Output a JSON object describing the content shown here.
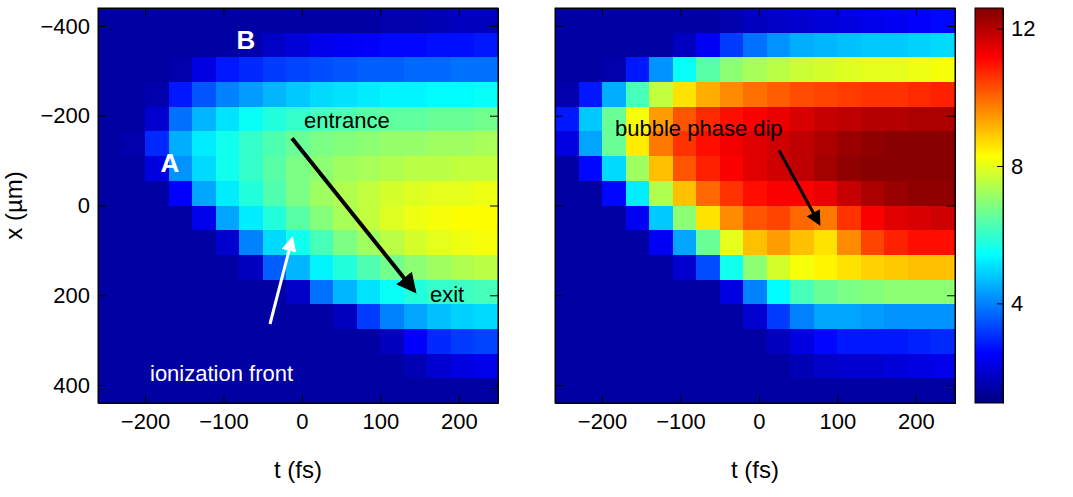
{
  "chart_data": [
    {
      "type": "heatmap",
      "x_label": "t (fs)",
      "y_label": "x (µm)",
      "xlim": [
        -260,
        250
      ],
      "ylim": [
        -440,
        440
      ],
      "xticks": [
        {
          "value": -200,
          "label": "−200"
        },
        {
          "value": -100,
          "label": "−100"
        },
        0,
        100,
        200
      ],
      "yticks": [
        {
          "value": -400,
          "label": "−400"
        },
        {
          "value": -200,
          "label": "−200"
        },
        0,
        200,
        400
      ],
      "zlim": [
        1.1,
        12.6
      ],
      "zticks": [
        4,
        8,
        12
      ],
      "annotations": [
        "B",
        "A",
        "entrance",
        "exit",
        "ionization front"
      ],
      "x_edges": [
        -260,
        -230,
        -200,
        -170,
        -140,
        -110,
        -80,
        -50,
        -20,
        10,
        40,
        70,
        100,
        130,
        160,
        190,
        220,
        250
      ],
      "y_edges": [
        -440,
        -385,
        -330,
        -275,
        -220,
        -165,
        -110,
        -55,
        0,
        55,
        110,
        165,
        220,
        275,
        330,
        385,
        440
      ],
      "cells": [
        [
          1.5,
          1.5,
          1.5,
          1.5,
          1.5,
          1.5,
          1.5,
          1.5,
          1.5,
          1.5,
          1.5,
          1.5,
          1.6,
          1.6,
          1.7,
          1.8,
          1.8
        ],
        [
          1.5,
          1.5,
          1.5,
          1.5,
          1.5,
          1.5,
          1.6,
          1.9,
          2.1,
          2.3,
          2.4,
          2.5,
          2.6,
          2.6,
          2.7,
          2.7,
          2.8
        ],
        [
          1.5,
          1.5,
          1.5,
          1.6,
          2.2,
          2.8,
          3.0,
          3.2,
          3.3,
          3.4,
          3.5,
          3.6,
          3.6,
          3.7,
          3.7,
          3.8,
          3.8
        ],
        [
          1.5,
          1.5,
          1.6,
          2.8,
          3.5,
          4.0,
          4.3,
          4.6,
          4.8,
          5.0,
          5.1,
          5.2,
          5.3,
          5.3,
          5.4,
          5.4,
          5.5
        ],
        [
          1.5,
          1.5,
          2.0,
          3.8,
          4.6,
          5.1,
          5.5,
          5.8,
          6.0,
          6.2,
          6.3,
          6.4,
          6.5,
          6.5,
          6.6,
          6.6,
          6.7
        ],
        [
          1.5,
          1.6,
          3.0,
          4.5,
          5.2,
          5.6,
          6.0,
          6.3,
          6.6,
          6.8,
          6.9,
          7.0,
          7.1,
          7.1,
          7.2,
          7.2,
          7.3
        ],
        [
          1.5,
          1.5,
          2.2,
          4.2,
          5.0,
          5.6,
          6.0,
          6.4,
          6.8,
          7.0,
          7.2,
          7.3,
          7.4,
          7.5,
          7.5,
          7.6,
          7.6
        ],
        [
          1.5,
          1.5,
          1.5,
          2.5,
          4.4,
          5.2,
          5.8,
          6.3,
          6.8,
          7.2,
          7.4,
          7.6,
          7.8,
          7.9,
          8.0,
          8.0,
          8.1
        ],
        [
          1.5,
          1.5,
          1.5,
          1.5,
          2.3,
          4.4,
          5.2,
          5.8,
          6.4,
          6.9,
          7.3,
          7.6,
          7.9,
          8.1,
          8.2,
          8.3,
          8.3
        ],
        [
          1.5,
          1.5,
          1.5,
          1.5,
          1.5,
          2.0,
          4.0,
          5.0,
          5.6,
          6.2,
          6.8,
          7.2,
          7.5,
          7.8,
          8.0,
          8.1,
          8.2
        ],
        [
          1.5,
          1.5,
          1.5,
          1.5,
          1.5,
          1.5,
          1.8,
          3.6,
          4.6,
          5.3,
          5.8,
          6.3,
          6.7,
          7.0,
          7.2,
          7.4,
          7.5
        ],
        [
          1.5,
          1.5,
          1.5,
          1.5,
          1.5,
          1.5,
          1.5,
          1.5,
          1.9,
          3.8,
          4.6,
          5.1,
          5.5,
          5.8,
          6.0,
          6.1,
          6.2
        ],
        [
          1.5,
          1.5,
          1.5,
          1.5,
          1.5,
          1.5,
          1.5,
          1.5,
          1.5,
          1.5,
          1.8,
          3.2,
          4.0,
          4.4,
          4.7,
          4.9,
          5.0
        ],
        [
          1.5,
          1.5,
          1.5,
          1.5,
          1.5,
          1.5,
          1.5,
          1.5,
          1.5,
          1.5,
          1.5,
          1.5,
          1.8,
          2.5,
          3.0,
          3.2,
          3.3
        ],
        [
          1.5,
          1.5,
          1.5,
          1.5,
          1.5,
          1.5,
          1.5,
          1.5,
          1.5,
          1.5,
          1.5,
          1.5,
          1.5,
          1.7,
          2.0,
          2.2,
          2.3
        ],
        [
          1.5,
          1.5,
          1.5,
          1.5,
          1.5,
          1.5,
          1.5,
          1.5,
          1.5,
          1.5,
          1.5,
          1.5,
          1.5,
          1.5,
          1.5,
          1.5,
          1.5
        ]
      ]
    },
    {
      "type": "heatmap",
      "x_label": "t (fs)",
      "tick_labels": "x",
      "xlim": [
        -260,
        250
      ],
      "ylim": [
        -440,
        440
      ],
      "xticks": [
        {
          "value": -200,
          "label": "−200"
        },
        {
          "value": -100,
          "label": "−100"
        },
        0,
        100,
        200
      ],
      "yticks": [
        -400,
        -200,
        0,
        200,
        400
      ],
      "zlim": [
        1.1,
        12.6
      ],
      "zticks": [
        4,
        8,
        12
      ],
      "annotations": [
        "bubble phase dip"
      ],
      "x_edges": [
        -260,
        -230,
        -200,
        -170,
        -140,
        -110,
        -80,
        -50,
        -20,
        10,
        40,
        70,
        100,
        130,
        160,
        190,
        220,
        250
      ],
      "y_edges": [
        -440,
        -385,
        -330,
        -275,
        -220,
        -165,
        -110,
        -55,
        0,
        55,
        110,
        165,
        220,
        275,
        330,
        385,
        440
      ],
      "cells": [
        [
          1.5,
          1.5,
          1.5,
          1.5,
          1.5,
          1.5,
          1.5,
          1.6,
          1.8,
          1.9,
          2.0,
          2.1,
          2.2,
          2.3,
          2.4,
          2.5,
          2.6
        ],
        [
          1.5,
          1.5,
          1.5,
          1.5,
          1.5,
          1.8,
          2.4,
          3.2,
          3.8,
          4.2,
          4.5,
          4.6,
          4.7,
          4.8,
          4.8,
          4.9,
          5.0
        ],
        [
          1.5,
          1.5,
          1.6,
          2.8,
          4.2,
          5.5,
          6.4,
          7.0,
          7.3,
          7.5,
          7.7,
          7.8,
          7.9,
          8.0,
          8.0,
          8.1,
          8.2
        ],
        [
          1.6,
          2.8,
          4.5,
          6.2,
          7.6,
          8.6,
          9.2,
          9.6,
          9.9,
          10.1,
          10.3,
          10.4,
          10.5,
          10.6,
          10.6,
          10.7,
          10.8
        ],
        [
          2.8,
          4.8,
          6.6,
          8.2,
          9.4,
          10.2,
          10.7,
          11.0,
          11.2,
          11.4,
          11.6,
          11.8,
          11.9,
          12.0,
          12.0,
          12.1,
          12.1
        ],
        [
          2.2,
          4.4,
          6.6,
          8.5,
          9.8,
          10.6,
          11.0,
          11.3,
          11.5,
          11.7,
          11.9,
          12.1,
          12.3,
          12.4,
          12.5,
          12.5,
          12.5
        ],
        [
          1.5,
          2.6,
          5.0,
          7.2,
          9.0,
          10.2,
          10.8,
          11.2,
          11.5,
          11.7,
          11.9,
          12.2,
          12.4,
          12.5,
          12.5,
          12.5,
          12.5
        ],
        [
          1.5,
          1.5,
          2.6,
          5.2,
          7.4,
          9.0,
          10.0,
          10.6,
          11.0,
          11.2,
          11.2,
          11.4,
          11.8,
          12.1,
          12.3,
          12.4,
          12.4
        ],
        [
          1.5,
          1.5,
          1.5,
          2.4,
          4.8,
          7.0,
          8.6,
          9.6,
          10.2,
          10.4,
          10.0,
          9.8,
          10.6,
          11.2,
          11.5,
          11.6,
          11.7
        ],
        [
          1.5,
          1.5,
          1.5,
          1.5,
          2.4,
          4.4,
          6.6,
          8.0,
          9.0,
          9.4,
          9.0,
          8.6,
          9.6,
          10.4,
          10.8,
          11.0,
          11.0
        ],
        [
          1.5,
          1.5,
          1.5,
          1.5,
          1.5,
          2.0,
          3.4,
          5.6,
          7.0,
          7.8,
          8.2,
          8.4,
          8.6,
          8.8,
          8.9,
          9.0,
          9.0
        ],
        [
          1.5,
          1.5,
          1.5,
          1.5,
          1.5,
          1.5,
          1.5,
          2.2,
          4.0,
          5.4,
          6.2,
          6.6,
          6.8,
          6.9,
          7.0,
          7.0,
          7.0
        ],
        [
          1.5,
          1.5,
          1.5,
          1.5,
          1.5,
          1.5,
          1.5,
          1.5,
          2.0,
          3.2,
          4.0,
          4.4,
          4.4,
          4.3,
          4.2,
          4.2,
          4.2
        ],
        [
          1.5,
          1.5,
          1.5,
          1.5,
          1.5,
          1.5,
          1.5,
          1.5,
          1.5,
          1.8,
          2.2,
          2.6,
          2.8,
          2.8,
          2.8,
          2.9,
          3.0
        ],
        [
          1.5,
          1.5,
          1.5,
          1.5,
          1.5,
          1.5,
          1.5,
          1.5,
          1.5,
          1.5,
          1.7,
          1.9,
          2.0,
          2.0,
          2.1,
          2.2,
          2.3
        ],
        [
          1.5,
          1.5,
          1.5,
          1.5,
          1.5,
          1.5,
          1.5,
          1.5,
          1.5,
          1.5,
          1.5,
          1.5,
          1.5,
          1.5,
          1.5,
          1.5,
          1.5
        ]
      ]
    }
  ]
}
